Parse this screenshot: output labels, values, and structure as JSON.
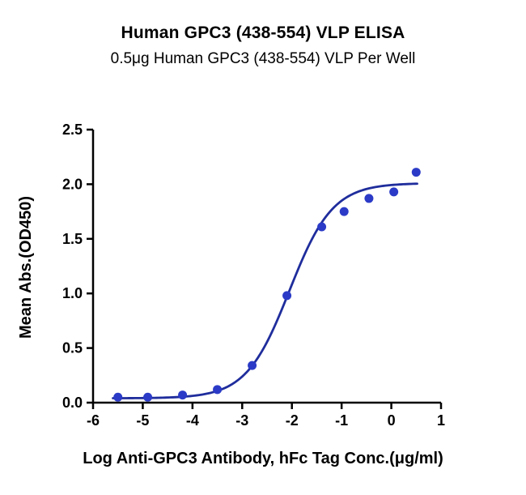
{
  "header": {
    "title": "Human GPC3 (438-554) VLP ELISA",
    "subtitle": "0.5μg Human GPC3 (438-554) VLP Per Well"
  },
  "chart_data": {
    "type": "scatter",
    "title": "Human GPC3 (438-554) VLP ELISA",
    "subtitle": "0.5μg Human GPC3 (438-554) VLP Per Well",
    "xlabel": "Log Anti-GPC3 Antibody, hFc Tag Conc.(μg/ml)",
    "ylabel": "Mean Abs.(OD450)",
    "xlim": [
      -6,
      1
    ],
    "ylim": [
      0,
      2.5
    ],
    "x_ticks": [
      -6,
      -5,
      -4,
      -3,
      -2,
      -1,
      0,
      1
    ],
    "x_tick_labels": [
      "-6",
      "-5",
      "-4",
      "-3",
      "-2",
      "-1",
      "0",
      "1"
    ],
    "y_ticks": [
      0,
      0.5,
      1,
      1.5,
      2,
      2.5
    ],
    "y_tick_labels": [
      "0.0",
      "0.5",
      "1.0",
      "1.5",
      "2.0",
      "2.5"
    ],
    "grid": false,
    "legend": "none",
    "series": [
      {
        "name": "Anti-GPC3 Antibody, hFc Tag",
        "x": [
          -5.5,
          -4.9,
          -4.2,
          -3.5,
          -2.8,
          -2.1,
          -1.4,
          -0.95,
          -0.45,
          0.05,
          0.5
        ],
        "y": [
          0.05,
          0.05,
          0.07,
          0.12,
          0.34,
          0.98,
          1.61,
          1.75,
          1.87,
          1.93,
          2.11
        ]
      }
    ],
    "fit": {
      "model": "4PL",
      "bottom": 0.04,
      "top": 2.01,
      "logEC50": -2.05,
      "hill": 1.0,
      "draw_range": [
        -5.6,
        0.55
      ]
    },
    "colors": {
      "point": "#2b3bc7",
      "line": "#1f2d9c",
      "axis": "#000000",
      "text": "#000000"
    }
  }
}
